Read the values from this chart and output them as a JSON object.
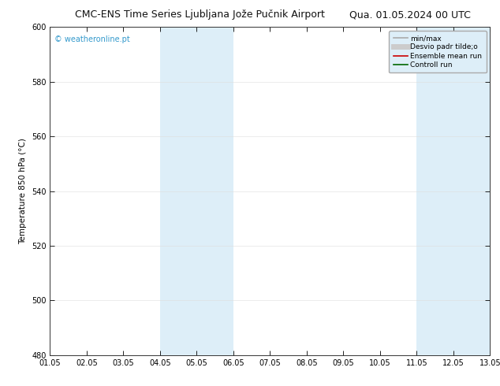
{
  "title_left": "CMC-ENS Time Series Ljubljana Jože Pučnik Airport",
  "title_right": "Qua. 01.05.2024 00 UTC",
  "ylabel": "Temperature 850 hPa (°C)",
  "ylim": [
    480,
    600
  ],
  "yticks": [
    480,
    500,
    520,
    540,
    560,
    580,
    600
  ],
  "xlim": [
    0,
    12
  ],
  "xtick_labels": [
    "01.05",
    "02.05",
    "03.05",
    "04.05",
    "05.05",
    "06.05",
    "07.05",
    "08.05",
    "09.05",
    "10.05",
    "11.05",
    "12.05",
    "13.05"
  ],
  "xtick_positions": [
    0,
    1,
    2,
    3,
    4,
    5,
    6,
    7,
    8,
    9,
    10,
    11,
    12
  ],
  "shaded_bands": [
    {
      "xmin": 3,
      "xmax": 5,
      "color": "#ddeef8"
    },
    {
      "xmin": 10,
      "xmax": 12,
      "color": "#ddeef8"
    }
  ],
  "watermark": "© weatheronline.pt",
  "watermark_color": "#3399cc",
  "legend_entries": [
    {
      "label": "min/max",
      "color": "#aaaaaa",
      "lw": 1.2,
      "ls": "-"
    },
    {
      "label": "Desvio padr tilde;o",
      "color": "#cccccc",
      "lw": 5,
      "ls": "-"
    },
    {
      "label": "Ensemble mean run",
      "color": "#cc0000",
      "lw": 1.2,
      "ls": "-"
    },
    {
      "label": "Controll run",
      "color": "#006600",
      "lw": 1.2,
      "ls": "-"
    }
  ],
  "bg_color": "#ffffff",
  "plot_bg_color": "#ffffff",
  "grid_color": "#cccccc",
  "title_fontsize": 9,
  "label_fontsize": 7.5,
  "tick_fontsize": 7,
  "legend_fontsize": 6.5,
  "watermark_fontsize": 7
}
